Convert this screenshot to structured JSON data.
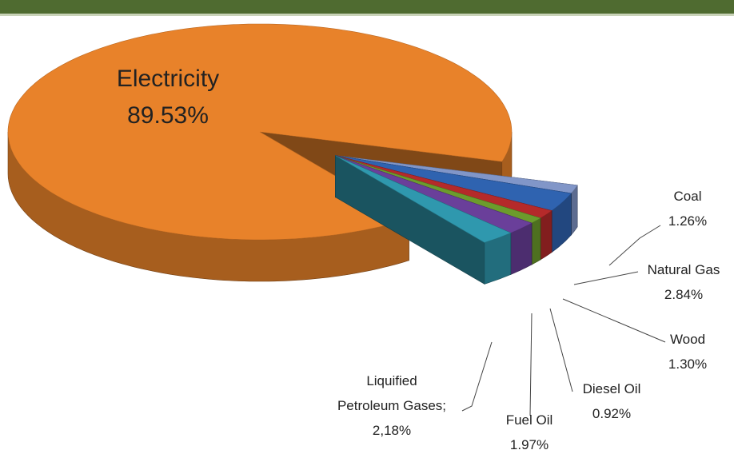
{
  "chart_data": {
    "type": "pie3d",
    "categories": [
      "Electricity",
      "Coal",
      "Natural Gas",
      "Wood",
      "Diesel Oil",
      "Fuel Oil",
      "Liquified Petroleum Gases;"
    ],
    "values": [
      89.53,
      1.26,
      2.84,
      1.3,
      0.92,
      1.97,
      2.18
    ],
    "value_labels": [
      "89.53%",
      "1.26%",
      "2.84%",
      "1.30%",
      "0.92%",
      "1.97%",
      "2,18%"
    ],
    "colors": [
      "#e8822a",
      "#8196c8",
      "#2f63b0",
      "#b52a2a",
      "#6c9c2c",
      "#6a3f9a",
      "#2f98ae"
    ],
    "exploded": [
      false,
      true,
      true,
      true,
      true,
      true,
      true
    ]
  }
}
